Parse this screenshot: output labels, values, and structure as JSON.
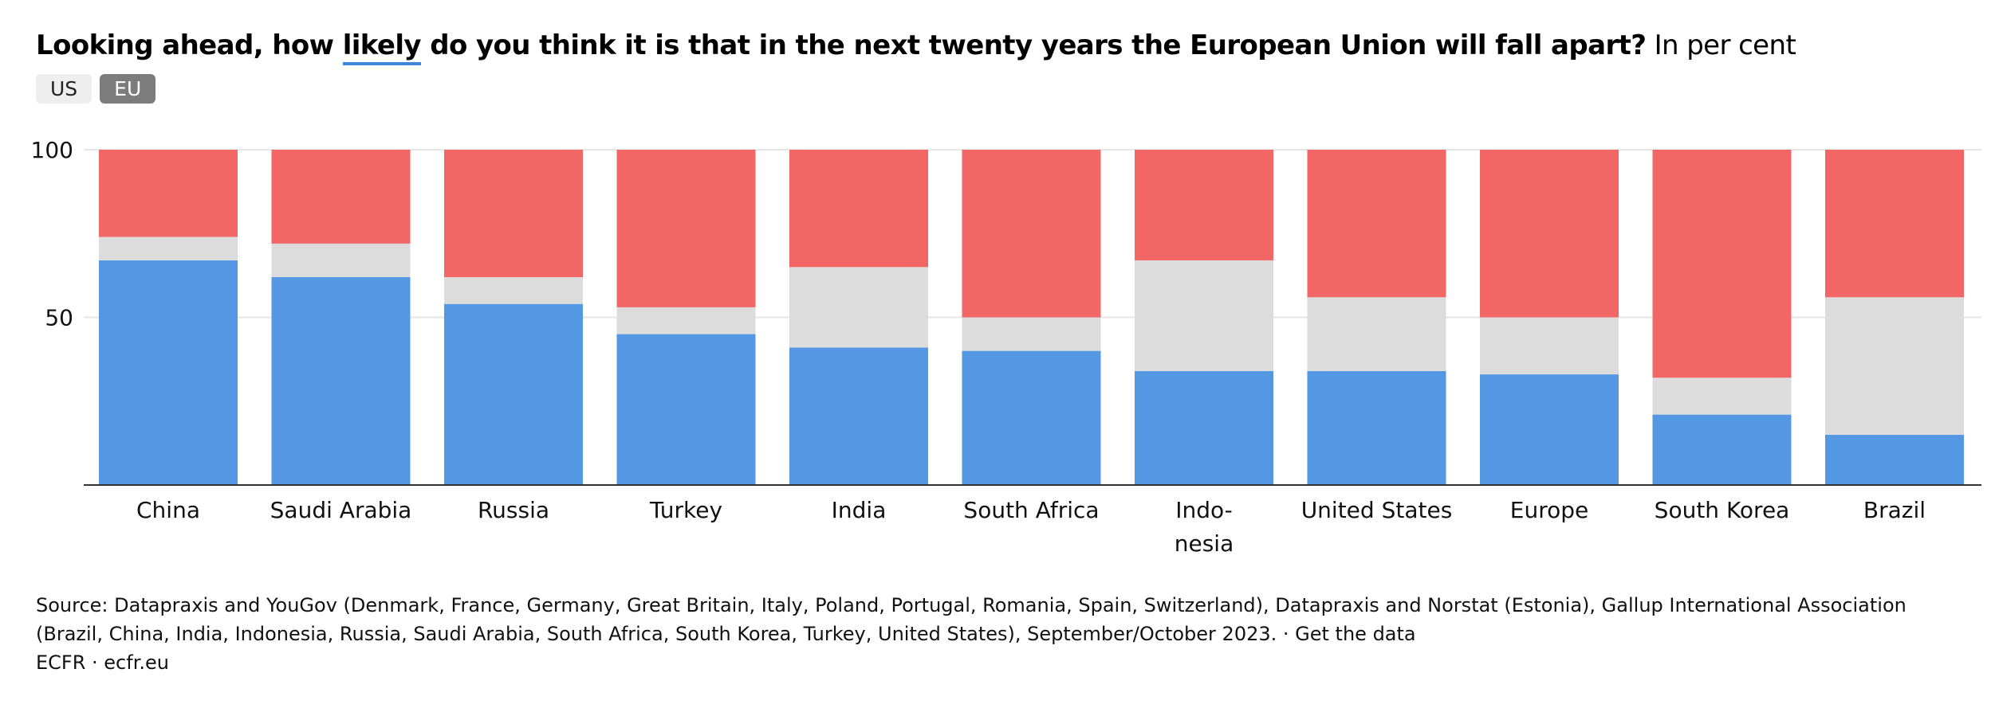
{
  "title": {
    "question_prefix": "Looking ahead, how ",
    "question_keyword": "likely",
    "question_suffix": " do you think it is that in the next twenty years the European Union will fall apart?",
    "unit": " In per cent"
  },
  "toggles": [
    {
      "label": "US",
      "active": false
    },
    {
      "label": "EU",
      "active": true
    }
  ],
  "colors": {
    "blue": "#5497e2",
    "grey": "#dcdcdc",
    "red": "#f26766",
    "axis": "#333333",
    "grid": "#e6e6e6"
  },
  "chart_data": {
    "type": "bar",
    "stacked": true,
    "categories": [
      "China",
      "Saudi Arabia",
      "Russia",
      "Turkey",
      "India",
      "South Africa",
      "Indo-nesia",
      "United States",
      "Europe",
      "South Korea",
      "Brazil"
    ],
    "category_lines": [
      [
        "China"
      ],
      [
        "Saudi Arabia"
      ],
      [
        "Russia"
      ],
      [
        "Turkey"
      ],
      [
        "India"
      ],
      [
        "South Africa"
      ],
      [
        "Indo-",
        "nesia"
      ],
      [
        "United States"
      ],
      [
        "Europe"
      ],
      [
        "South Korea"
      ],
      [
        "Brazil"
      ]
    ],
    "series": [
      {
        "color": "#5497e2",
        "values": [
          67,
          62,
          54,
          45,
          41,
          40,
          34,
          34,
          33,
          21,
          15
        ]
      },
      {
        "color": "#dcdcdc",
        "values": [
          7,
          10,
          8,
          8,
          24,
          10,
          33,
          22,
          17,
          11,
          41
        ]
      },
      {
        "color": "#f26766",
        "values": [
          26,
          28,
          38,
          47,
          35,
          50,
          33,
          44,
          50,
          68,
          44
        ]
      }
    ],
    "y_ticks": [
      "100",
      "50"
    ],
    "y_tick_values": [
      100,
      50
    ],
    "ylim": [
      0,
      100
    ],
    "grid": true
  },
  "footer": {
    "source": "Source: Datapraxis and YouGov (Denmark, France, Germany, Great Britain, Italy, Poland, Portugal, Romania, Spain, Switzerland), Datapraxis and Norstat (Estonia), Gallup International Association (Brazil, China, India, Indonesia, Russia, Saudi Arabia, South Africa, South Korea, Turkey, United States), September/October 2023.",
    "separator": " · ",
    "get_data": "Get the data",
    "credit": "ECFR · ecfr.eu"
  }
}
